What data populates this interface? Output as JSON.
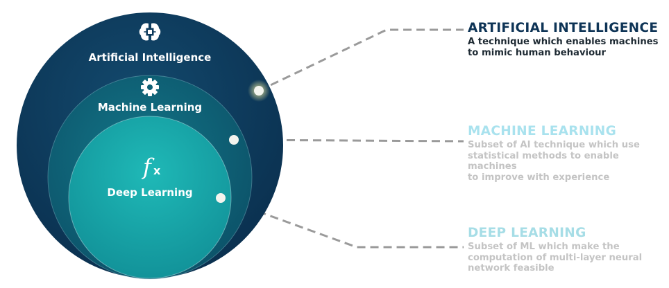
{
  "colors": {
    "outer": "#0d3a5c",
    "middle": "#0e5f75",
    "inner": "#16a6a9",
    "connector": "#9a9a9a",
    "ai_title": "#0e3456",
    "ai_text": "#1e2a33",
    "ml_title": "#a9e2ee",
    "dl_title": "#a6dde6",
    "faded_text": "#c4c4c4"
  },
  "circles": {
    "ai": {
      "label": "Artificial Intelligence",
      "icon": "brain-chip-icon"
    },
    "ml": {
      "label": "Machine Learning",
      "icon": "gear-icon"
    },
    "dl": {
      "label": "Deep Learning",
      "icon": "fx-function-icon"
    }
  },
  "descriptions": [
    {
      "key": "ai",
      "title": "ARTIFICIAL INTELLIGENCE",
      "lines": [
        "A technique which enables machines",
        "to mimic human behaviour"
      ]
    },
    {
      "key": "ml",
      "title": "MACHINE LEARNING",
      "lines": [
        "Subset of AI technique which use",
        "statistical methods to enable machines",
        "to improve with experience"
      ]
    },
    {
      "key": "dl",
      "title": "DEEP LEARNING",
      "lines": [
        "Subset of ML which make the",
        "computation of multi-layer neural",
        "network feasible"
      ]
    }
  ]
}
